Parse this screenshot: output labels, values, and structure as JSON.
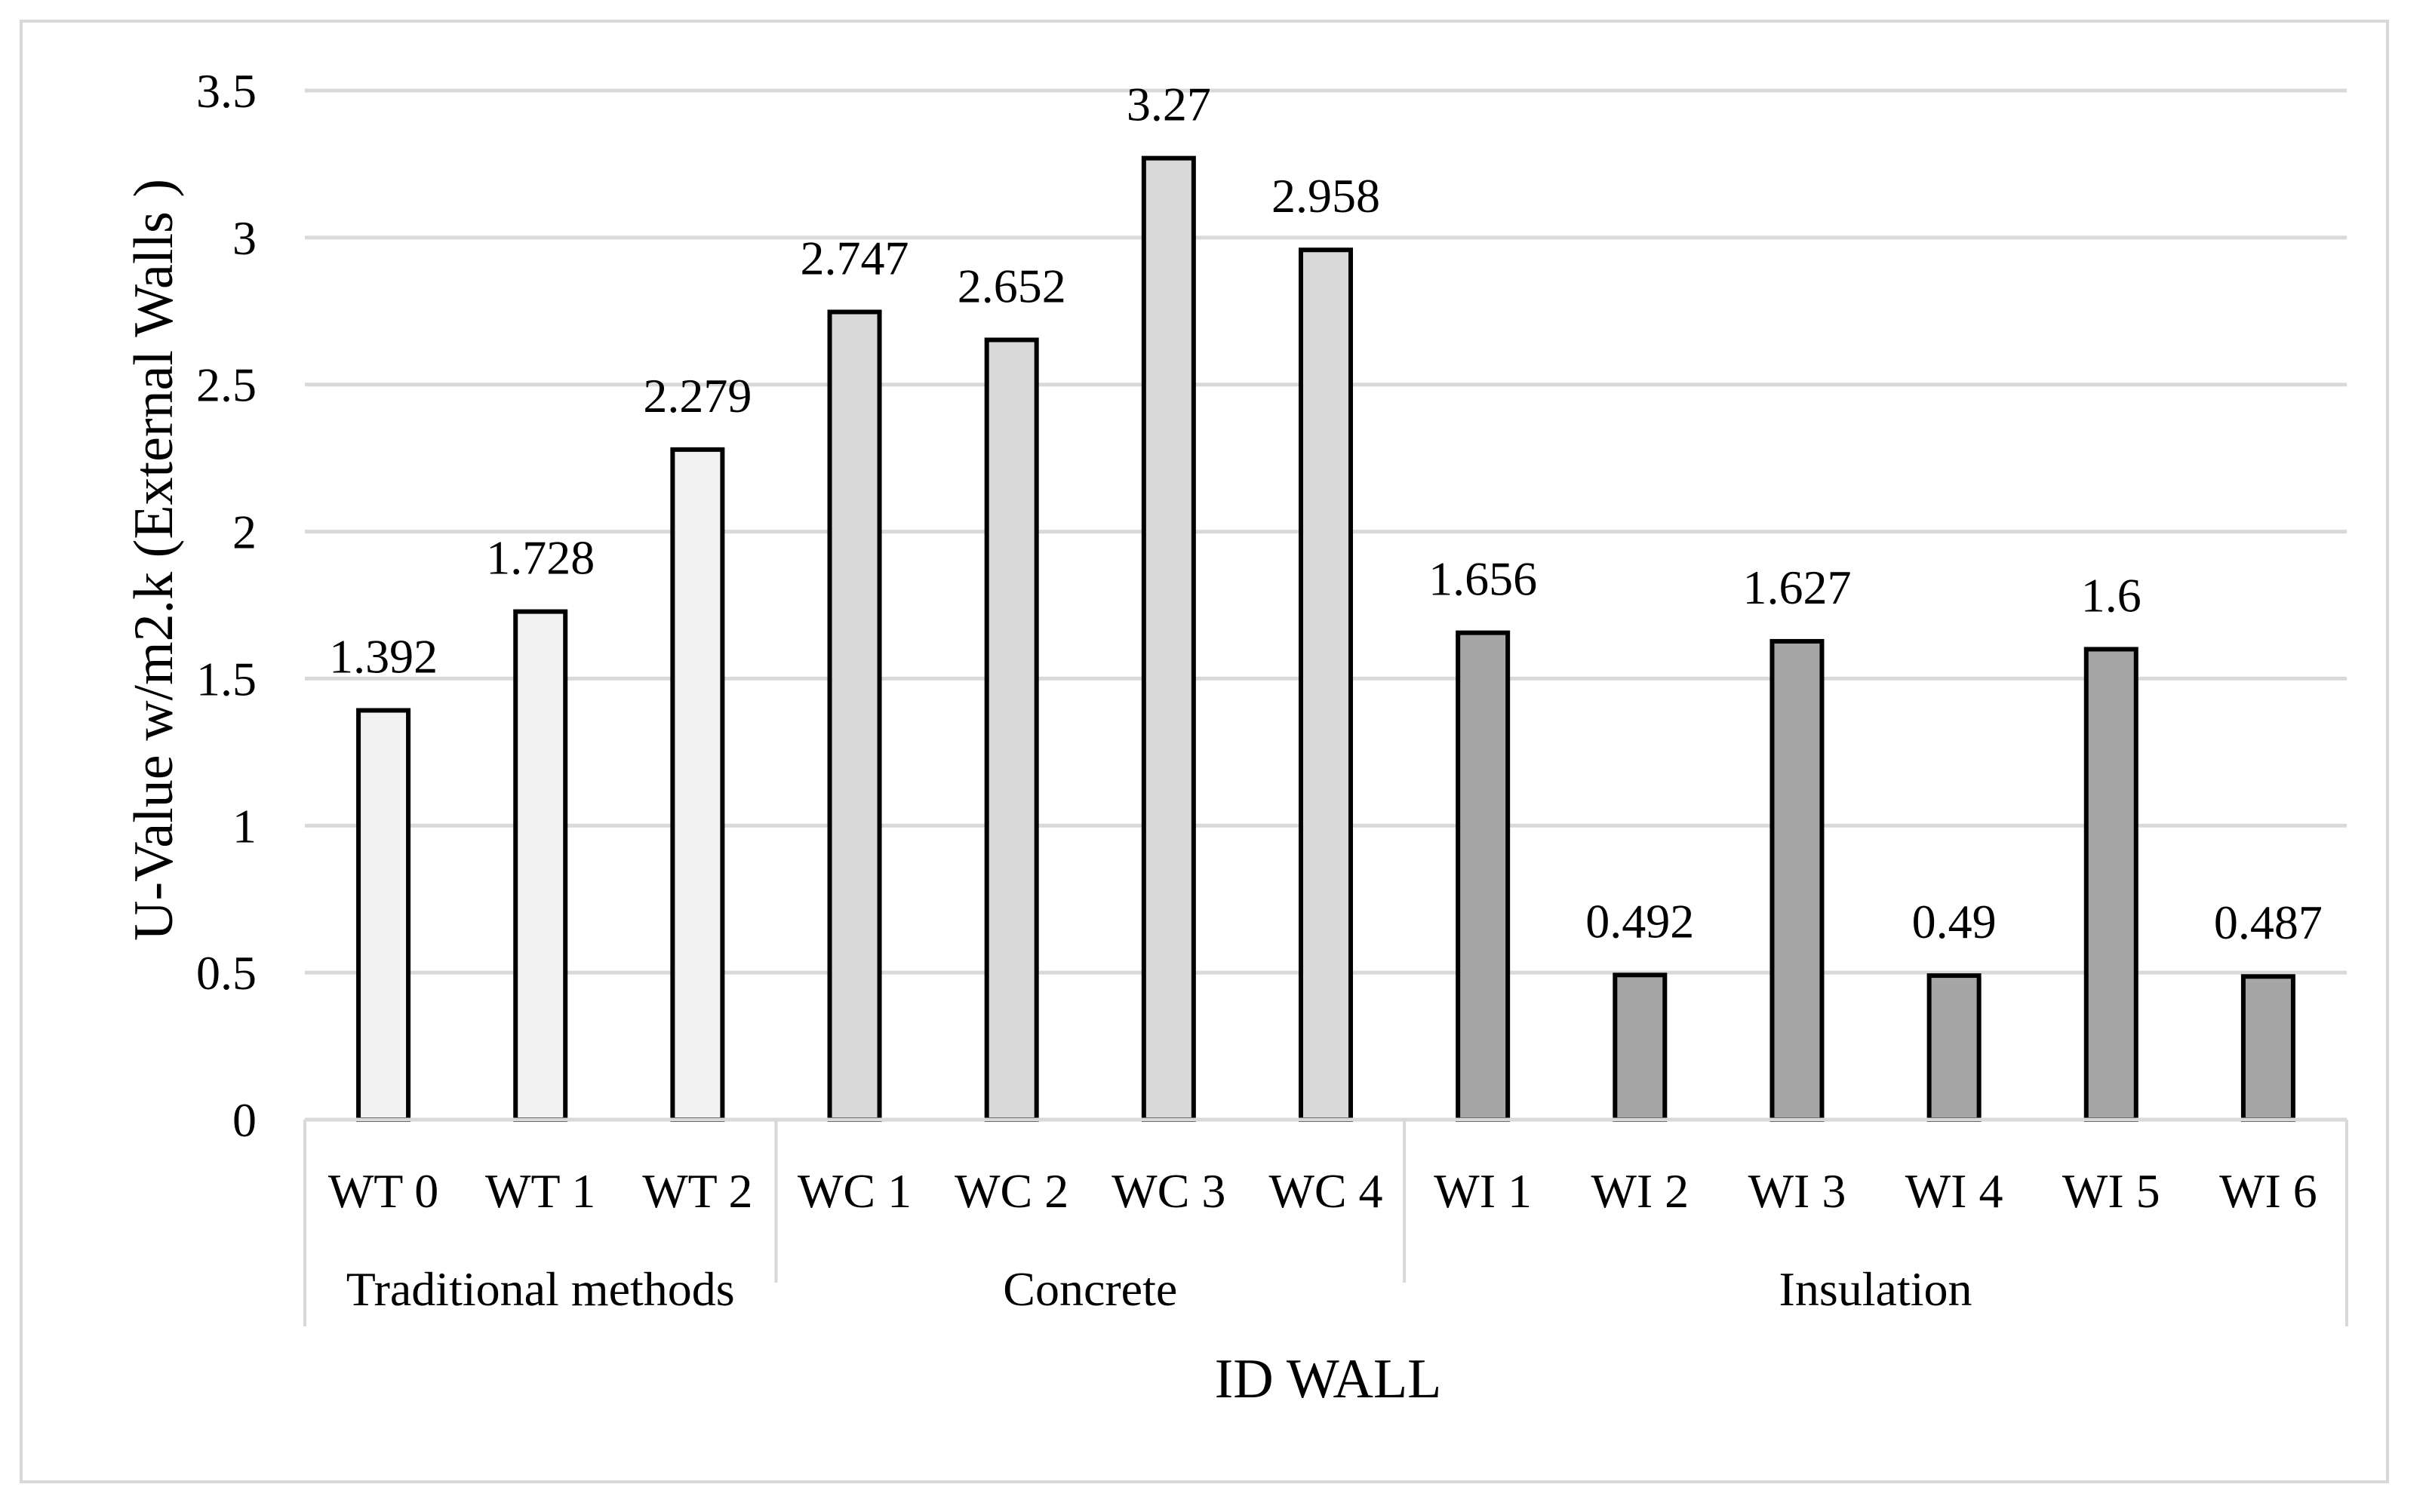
{
  "chart_data": {
    "type": "bar",
    "title": "",
    "xlabel": "ID WALL",
    "ylabel": "U-Value w/m2.k (External Walls )",
    "ylim": [
      0,
      3.5
    ],
    "yticks": [
      "0",
      "0.5",
      "1",
      "1.5",
      "2",
      "2.5",
      "3",
      "3.5"
    ],
    "ytick_values": [
      0,
      0.5,
      1,
      1.5,
      2,
      2.5,
      3,
      3.5
    ],
    "grid": true,
    "categories": [
      "WT 0",
      "WT 1",
      "WT 2",
      "WC 1",
      "WC 2",
      "WC 3",
      "WC 4",
      "WI 1",
      "WI 2",
      "WI 3",
      "WI 4",
      "WI 5",
      "WI 6"
    ],
    "values": [
      1.392,
      1.728,
      2.279,
      2.747,
      2.652,
      3.27,
      2.958,
      1.656,
      0.492,
      1.627,
      0.49,
      1.6,
      0.487
    ],
    "value_labels": [
      "1.392",
      "1.728",
      "2.279",
      "2.747",
      "2.652",
      "3.27",
      "2.958",
      "1.656",
      "0.492",
      "1.627",
      "0.49",
      "1.6",
      "0.487"
    ],
    "groups": [
      {
        "name": "Traditional methods",
        "start": 0,
        "count": 3,
        "color": "#f2f2f2"
      },
      {
        "name": "Concrete",
        "start": 3,
        "count": 4,
        "color": "#d9d9d9"
      },
      {
        "name": "Insulation",
        "start": 7,
        "count": 6,
        "color": "#a6a6a6"
      }
    ]
  }
}
